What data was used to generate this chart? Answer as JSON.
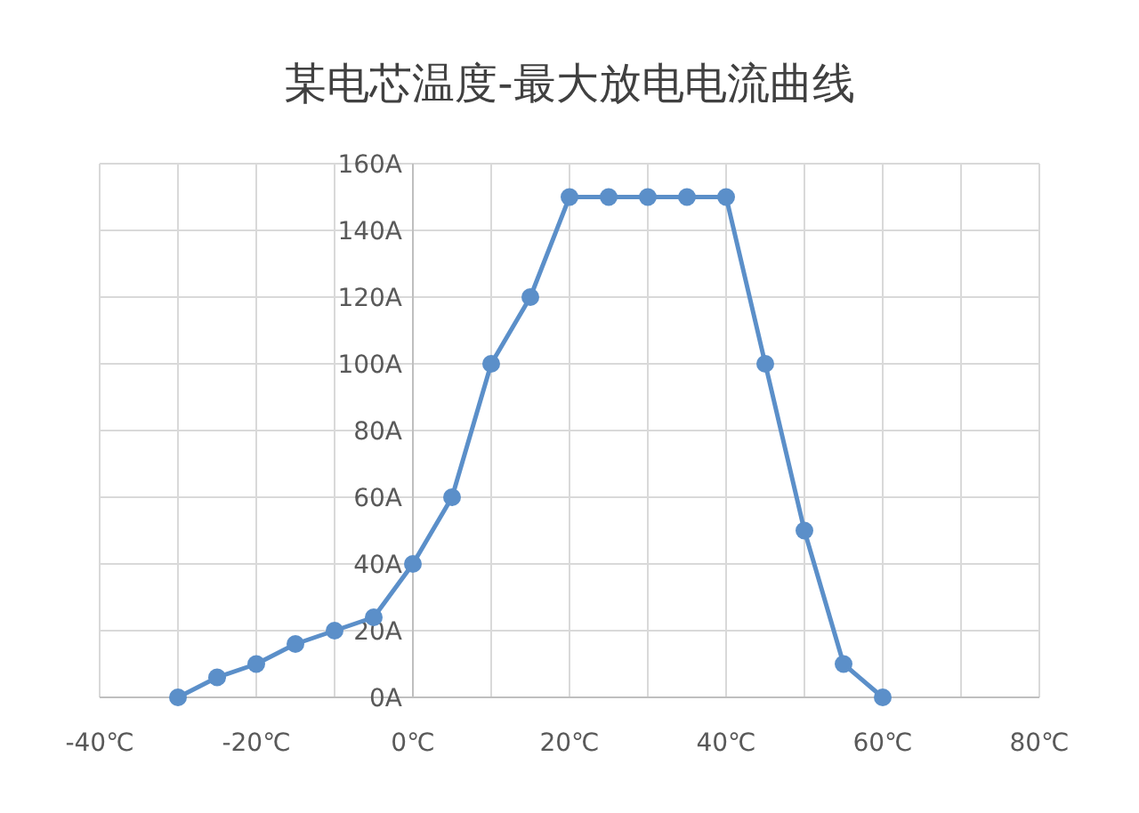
{
  "chart_data": {
    "type": "line",
    "title": "某电芯温度-最大放电电流曲线",
    "x": [
      -30,
      -25,
      -20,
      -15,
      -10,
      -5,
      0,
      5,
      10,
      15,
      20,
      25,
      30,
      35,
      40,
      45,
      50,
      55,
      60
    ],
    "series": [
      {
        "color": "#5b8fc9",
        "values": [
          0,
          6,
          10,
          16,
          20,
          24,
          40,
          60,
          100,
          120,
          150,
          150,
          150,
          150,
          150,
          100,
          50,
          10,
          0
        ]
      }
    ],
    "xlim": [
      -40,
      80
    ],
    "xticks": [
      {
        "value": -40,
        "label": "-40℃"
      },
      {
        "value": -20,
        "label": "-20℃"
      },
      {
        "value": 0,
        "label": "0℃"
      },
      {
        "value": 20,
        "label": "20℃"
      },
      {
        "value": 40,
        "label": "40℃"
      },
      {
        "value": 60,
        "label": "60℃"
      },
      {
        "value": 80,
        "label": "80℃"
      }
    ],
    "ylim": [
      0,
      160
    ],
    "yticks": [
      {
        "value": 0,
        "label": "0A"
      },
      {
        "value": 20,
        "label": "20A"
      },
      {
        "value": 40,
        "label": "40A"
      },
      {
        "value": 60,
        "label": "60A"
      },
      {
        "value": 80,
        "label": "80A"
      },
      {
        "value": 100,
        "label": "100A"
      },
      {
        "value": 120,
        "label": "120A"
      },
      {
        "value": 140,
        "label": "140A"
      },
      {
        "value": 160,
        "label": "160A"
      }
    ],
    "grid": true,
    "marker": "circle",
    "line_style": "solid"
  }
}
